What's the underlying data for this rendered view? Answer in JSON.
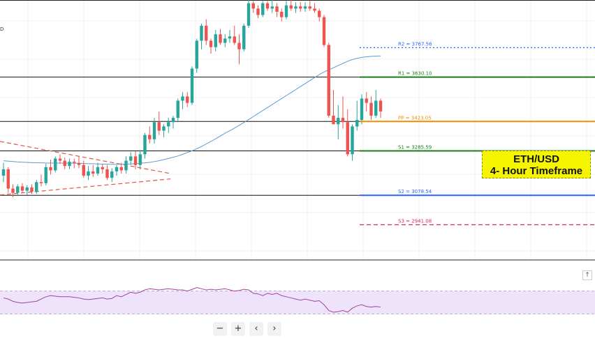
{
  "chart_data": {
    "type": "candlestick",
    "series_name": "ETH/USD",
    "title": "ETH/USD\n4- Hour Timeframe",
    "title_lines": [
      "ETH/USD",
      "4- Hour Timeframe"
    ],
    "ylim": [
      2780,
      3990
    ],
    "levels": [
      {
        "key": "R2",
        "label": "R2 = 3767.56",
        "value": 3767.56,
        "color": "#2962ff",
        "style": "dotted"
      },
      {
        "key": "R1",
        "label": "R1 = 3630.10",
        "value": 3630.1,
        "color": "#1b7a1b",
        "style": "solid"
      },
      {
        "key": "PP",
        "label": "PP = 3423.05",
        "value": 3423.05,
        "color": "#ef8c00",
        "style": "solid"
      },
      {
        "key": "S1",
        "label": "S1 = 3285.59",
        "value": 3285.59,
        "color": "#1b7a1b",
        "style": "solid"
      },
      {
        "key": "S2",
        "label": "S2 = 3078.54",
        "value": 3078.54,
        "color": "#2962ff",
        "style": "solid"
      },
      {
        "key": "S3",
        "label": "S3 = 2941.08",
        "value": 2941.08,
        "color": "#d6275a",
        "style": "dashed"
      }
    ],
    "candles": [
      [
        3170,
        3230,
        3140,
        3200
      ],
      [
        3200,
        3210,
        3090,
        3110
      ],
      [
        3110,
        3130,
        3070,
        3090
      ],
      [
        3090,
        3130,
        3075,
        3120
      ],
      [
        3120,
        3135,
        3090,
        3100
      ],
      [
        3100,
        3125,
        3080,
        3115
      ],
      [
        3115,
        3130,
        3085,
        3095
      ],
      [
        3095,
        3150,
        3085,
        3140
      ],
      [
        3140,
        3175,
        3120,
        3135
      ],
      [
        3135,
        3225,
        3125,
        3210
      ],
      [
        3210,
        3245,
        3175,
        3195
      ],
      [
        3195,
        3260,
        3185,
        3250
      ],
      [
        3250,
        3270,
        3225,
        3240
      ],
      [
        3240,
        3255,
        3200,
        3215
      ],
      [
        3215,
        3250,
        3200,
        3235
      ],
      [
        3235,
        3250,
        3205,
        3230
      ],
      [
        3230,
        3260,
        3205,
        3220
      ],
      [
        3220,
        3240,
        3160,
        3170
      ],
      [
        3170,
        3215,
        3150,
        3190
      ],
      [
        3190,
        3220,
        3165,
        3180
      ],
      [
        3180,
        3230,
        3170,
        3210
      ],
      [
        3210,
        3225,
        3180,
        3200
      ],
      [
        3200,
        3220,
        3150,
        3160
      ],
      [
        3160,
        3205,
        3140,
        3190
      ],
      [
        3190,
        3220,
        3170,
        3210
      ],
      [
        3210,
        3230,
        3180,
        3195
      ],
      [
        3195,
        3260,
        3180,
        3240
      ],
      [
        3240,
        3280,
        3220,
        3260
      ],
      [
        3260,
        3285,
        3200,
        3220
      ],
      [
        3220,
        3290,
        3200,
        3270
      ],
      [
        3270,
        3370,
        3250,
        3360
      ],
      [
        3360,
        3400,
        3320,
        3340
      ],
      [
        3340,
        3440,
        3320,
        3420
      ],
      [
        3420,
        3470,
        3360,
        3380
      ],
      [
        3380,
        3410,
        3350,
        3400
      ],
      [
        3400,
        3440,
        3370,
        3420
      ],
      [
        3420,
        3450,
        3390,
        3440
      ],
      [
        3440,
        3530,
        3420,
        3520
      ],
      [
        3520,
        3560,
        3480,
        3540
      ],
      [
        3540,
        3560,
        3490,
        3510
      ],
      [
        3510,
        3680,
        3500,
        3670
      ],
      [
        3670,
        3810,
        3650,
        3800
      ],
      [
        3800,
        3880,
        3760,
        3870
      ],
      [
        3870,
        3900,
        3780,
        3800
      ],
      [
        3800,
        3810,
        3740,
        3770
      ],
      [
        3770,
        3850,
        3750,
        3830
      ],
      [
        3830,
        3855,
        3780,
        3790
      ],
      [
        3790,
        3830,
        3770,
        3810
      ],
      [
        3810,
        3850,
        3790,
        3820
      ],
      [
        3820,
        3870,
        3780,
        3790
      ],
      [
        3790,
        3830,
        3690,
        3760
      ],
      [
        3760,
        3880,
        3750,
        3870
      ],
      [
        3870,
        3990,
        3860,
        3975
      ],
      [
        3975,
        3985,
        3930,
        3950
      ],
      [
        3950,
        3965,
        3905,
        3920
      ],
      [
        3920,
        3985,
        3910,
        3975
      ],
      [
        3975,
        3985,
        3940,
        3950
      ],
      [
        3950,
        3990,
        3930,
        3960
      ],
      [
        3960,
        3975,
        3910,
        3935
      ],
      [
        3935,
        3950,
        3890,
        3910
      ],
      [
        3910,
        3985,
        3900,
        3965
      ],
      [
        3965,
        3990,
        3940,
        3950
      ],
      [
        3950,
        3980,
        3930,
        3960
      ],
      [
        3960,
        3980,
        3935,
        3950
      ],
      [
        3950,
        3980,
        3935,
        3960
      ],
      [
        3960,
        3985,
        3940,
        3950
      ],
      [
        3950,
        3975,
        3930,
        3940
      ],
      [
        3940,
        3950,
        3890,
        3910
      ],
      [
        3910,
        3920,
        3770,
        3780
      ],
      [
        3780,
        3790,
        3440,
        3450
      ],
      [
        3450,
        3570,
        3420,
        3410
      ],
      [
        3410,
        3500,
        3340,
        3440
      ],
      [
        3440,
        3540,
        3390,
        3420
      ],
      [
        3420,
        3480,
        3260,
        3270
      ],
      [
        3270,
        3410,
        3240,
        3400
      ],
      [
        3400,
        3520,
        3380,
        3430
      ],
      [
        3430,
        3550,
        3410,
        3530
      ],
      [
        3530,
        3560,
        3470,
        3510
      ],
      [
        3510,
        3540,
        3430,
        3450
      ],
      [
        3450,
        3570,
        3440,
        3520
      ],
      [
        3520,
        3530,
        3440,
        3470
      ]
    ],
    "moving_average": [
      3240,
      3238,
      3236,
      3234,
      3233,
      3232,
      3231,
      3230,
      3230,
      3229,
      3229,
      3229,
      3229,
      3229,
      3229,
      3228,
      3228,
      3227,
      3226,
      3226,
      3225,
      3224,
      3224,
      3223,
      3223,
      3223,
      3224,
      3225,
      3226,
      3228,
      3230,
      3232,
      3236,
      3240,
      3245,
      3250,
      3256,
      3262,
      3270,
      3278,
      3286,
      3296,
      3306,
      3318,
      3330,
      3342,
      3355,
      3368,
      3380,
      3392,
      3405,
      3418,
      3432,
      3446,
      3460,
      3474,
      3488,
      3502,
      3516,
      3530,
      3544,
      3558,
      3572,
      3586,
      3600,
      3614,
      3628,
      3642,
      3654,
      3664,
      3674,
      3684,
      3694,
      3704,
      3712,
      3718,
      3722,
      3725,
      3727,
      3728,
      3729
    ],
    "rsi": [
      58,
      56,
      52,
      50,
      49,
      50,
      51,
      52,
      56,
      60,
      62,
      61,
      60,
      60,
      60,
      59,
      58,
      56,
      55,
      56,
      57,
      58,
      56,
      57,
      62,
      60,
      64,
      68,
      66,
      68,
      72,
      74,
      73,
      72,
      73,
      74,
      73,
      72,
      72,
      70,
      73,
      76,
      74,
      72,
      73,
      72,
      73,
      74,
      72,
      70,
      71,
      73,
      72,
      66,
      65,
      62,
      66,
      64,
      66,
      62,
      60,
      58,
      56,
      54,
      56,
      54,
      52,
      53,
      46,
      36,
      33,
      34,
      36,
      33,
      40,
      44,
      46,
      43,
      42,
      43,
      42
    ],
    "trendlines": [
      {
        "kind": "upper",
        "from": [
          0,
          3330
        ],
        "to": [
          31,
          3180
        ]
      },
      {
        "kind": "lower",
        "from": [
          0,
          3080
        ],
        "to": [
          31,
          3155
        ]
      }
    ]
  },
  "overlay": {
    "timeframe_title_line1": "ETH/USD",
    "timeframe_title_line2": "4- Hour Timeframe"
  },
  "left_edge": {
    "axis_char": "D"
  },
  "nav": {
    "zoom_out": "−",
    "zoom_in": "+",
    "scroll_left": "‹",
    "scroll_right": "›",
    "scroll_up": "↑"
  },
  "colors": {
    "up": "#26a69a",
    "down": "#ef5350",
    "ma": "#5b9bd5",
    "rsi": "#a0459a",
    "rsi_band": "#efe3fb",
    "horizontal_line": "#111111"
  }
}
